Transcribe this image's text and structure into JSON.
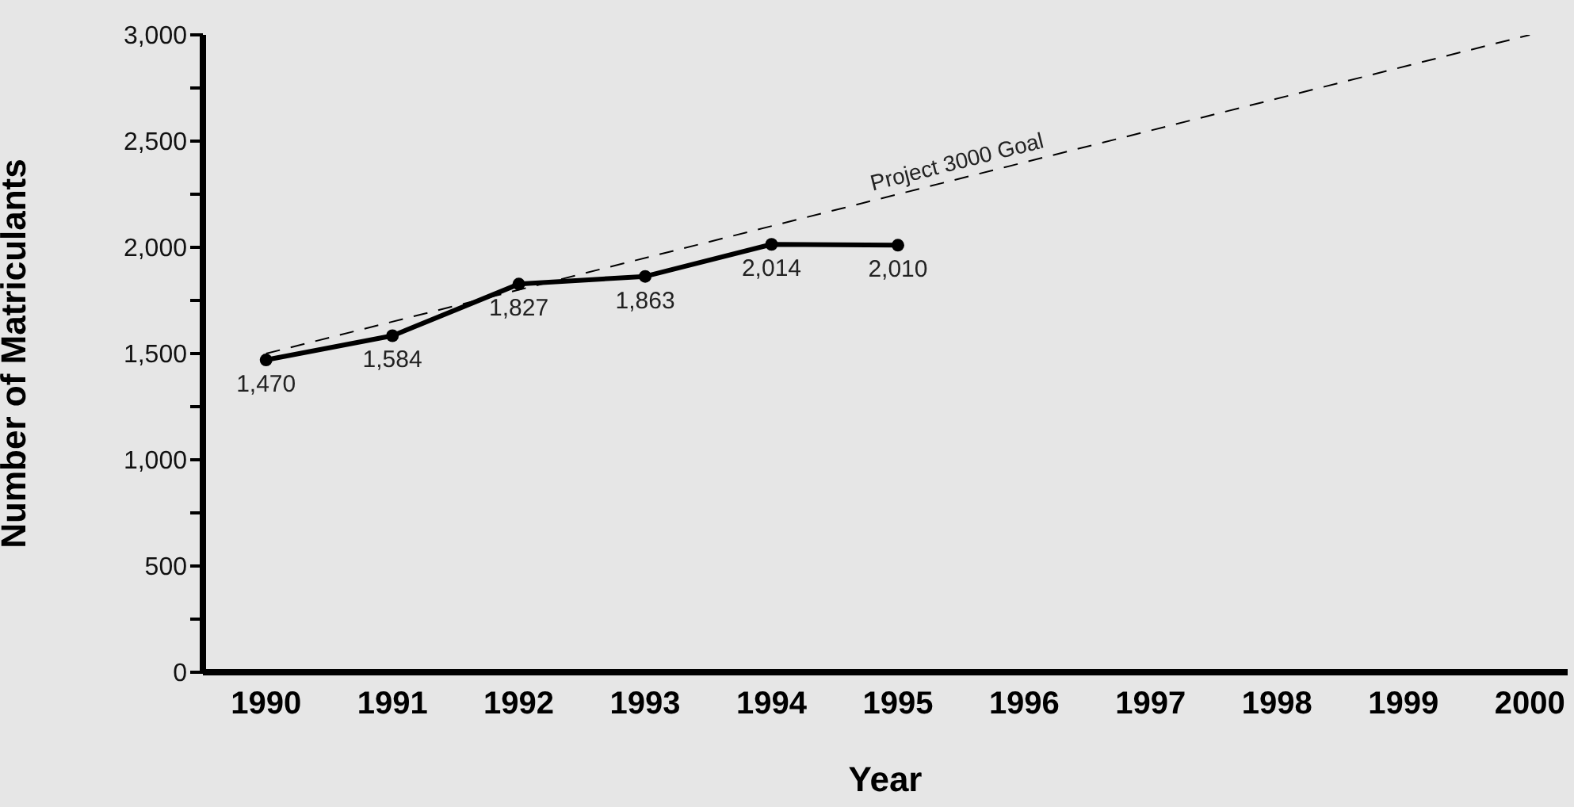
{
  "chart_data": {
    "type": "line",
    "xlabel": "Year",
    "ylabel": "Number of Matriculants",
    "xlim": [
      1989.5,
      2000.3
    ],
    "xticks": [
      1990,
      1991,
      1992,
      1993,
      1994,
      1995,
      1996,
      1997,
      1998,
      1999,
      2000
    ],
    "ylim": [
      0,
      3000
    ],
    "yticks": [
      0,
      {
        "value": 250,
        "label": null
      },
      {
        "value": 500,
        "label": "500"
      },
      {
        "value": 750,
        "label": null
      },
      {
        "value": 1000,
        "label": "1,000"
      },
      {
        "value": 1250,
        "label": null
      },
      {
        "value": 1500,
        "label": "1,500"
      },
      {
        "value": 1750,
        "label": null
      },
      {
        "value": 2000,
        "label": "2,000"
      },
      {
        "value": 2250,
        "label": null
      },
      {
        "value": 2500,
        "label": "2,500"
      },
      {
        "value": 2750,
        "label": null
      },
      {
        "value": 3000,
        "label": "3,000"
      }
    ],
    "grid": false,
    "legend": false,
    "series": [
      {
        "color": "#000000",
        "x": [
          1990,
          1991,
          1992,
          1993,
          1994,
          1995
        ],
        "values": [
          1470,
          1584,
          1827,
          1863,
          2014,
          2010
        ],
        "value_labels": [
          "1,470",
          "1,584",
          "1,827",
          "1,863",
          "2,014",
          "2,010"
        ],
        "marker": "circle",
        "line_style": "solid"
      },
      {
        "name": "Project 3000 Goal",
        "color": "#000000",
        "x": [
          1990,
          2000
        ],
        "values": [
          1500,
          3000
        ],
        "marker": "none",
        "line_style": "dashed"
      }
    ]
  }
}
